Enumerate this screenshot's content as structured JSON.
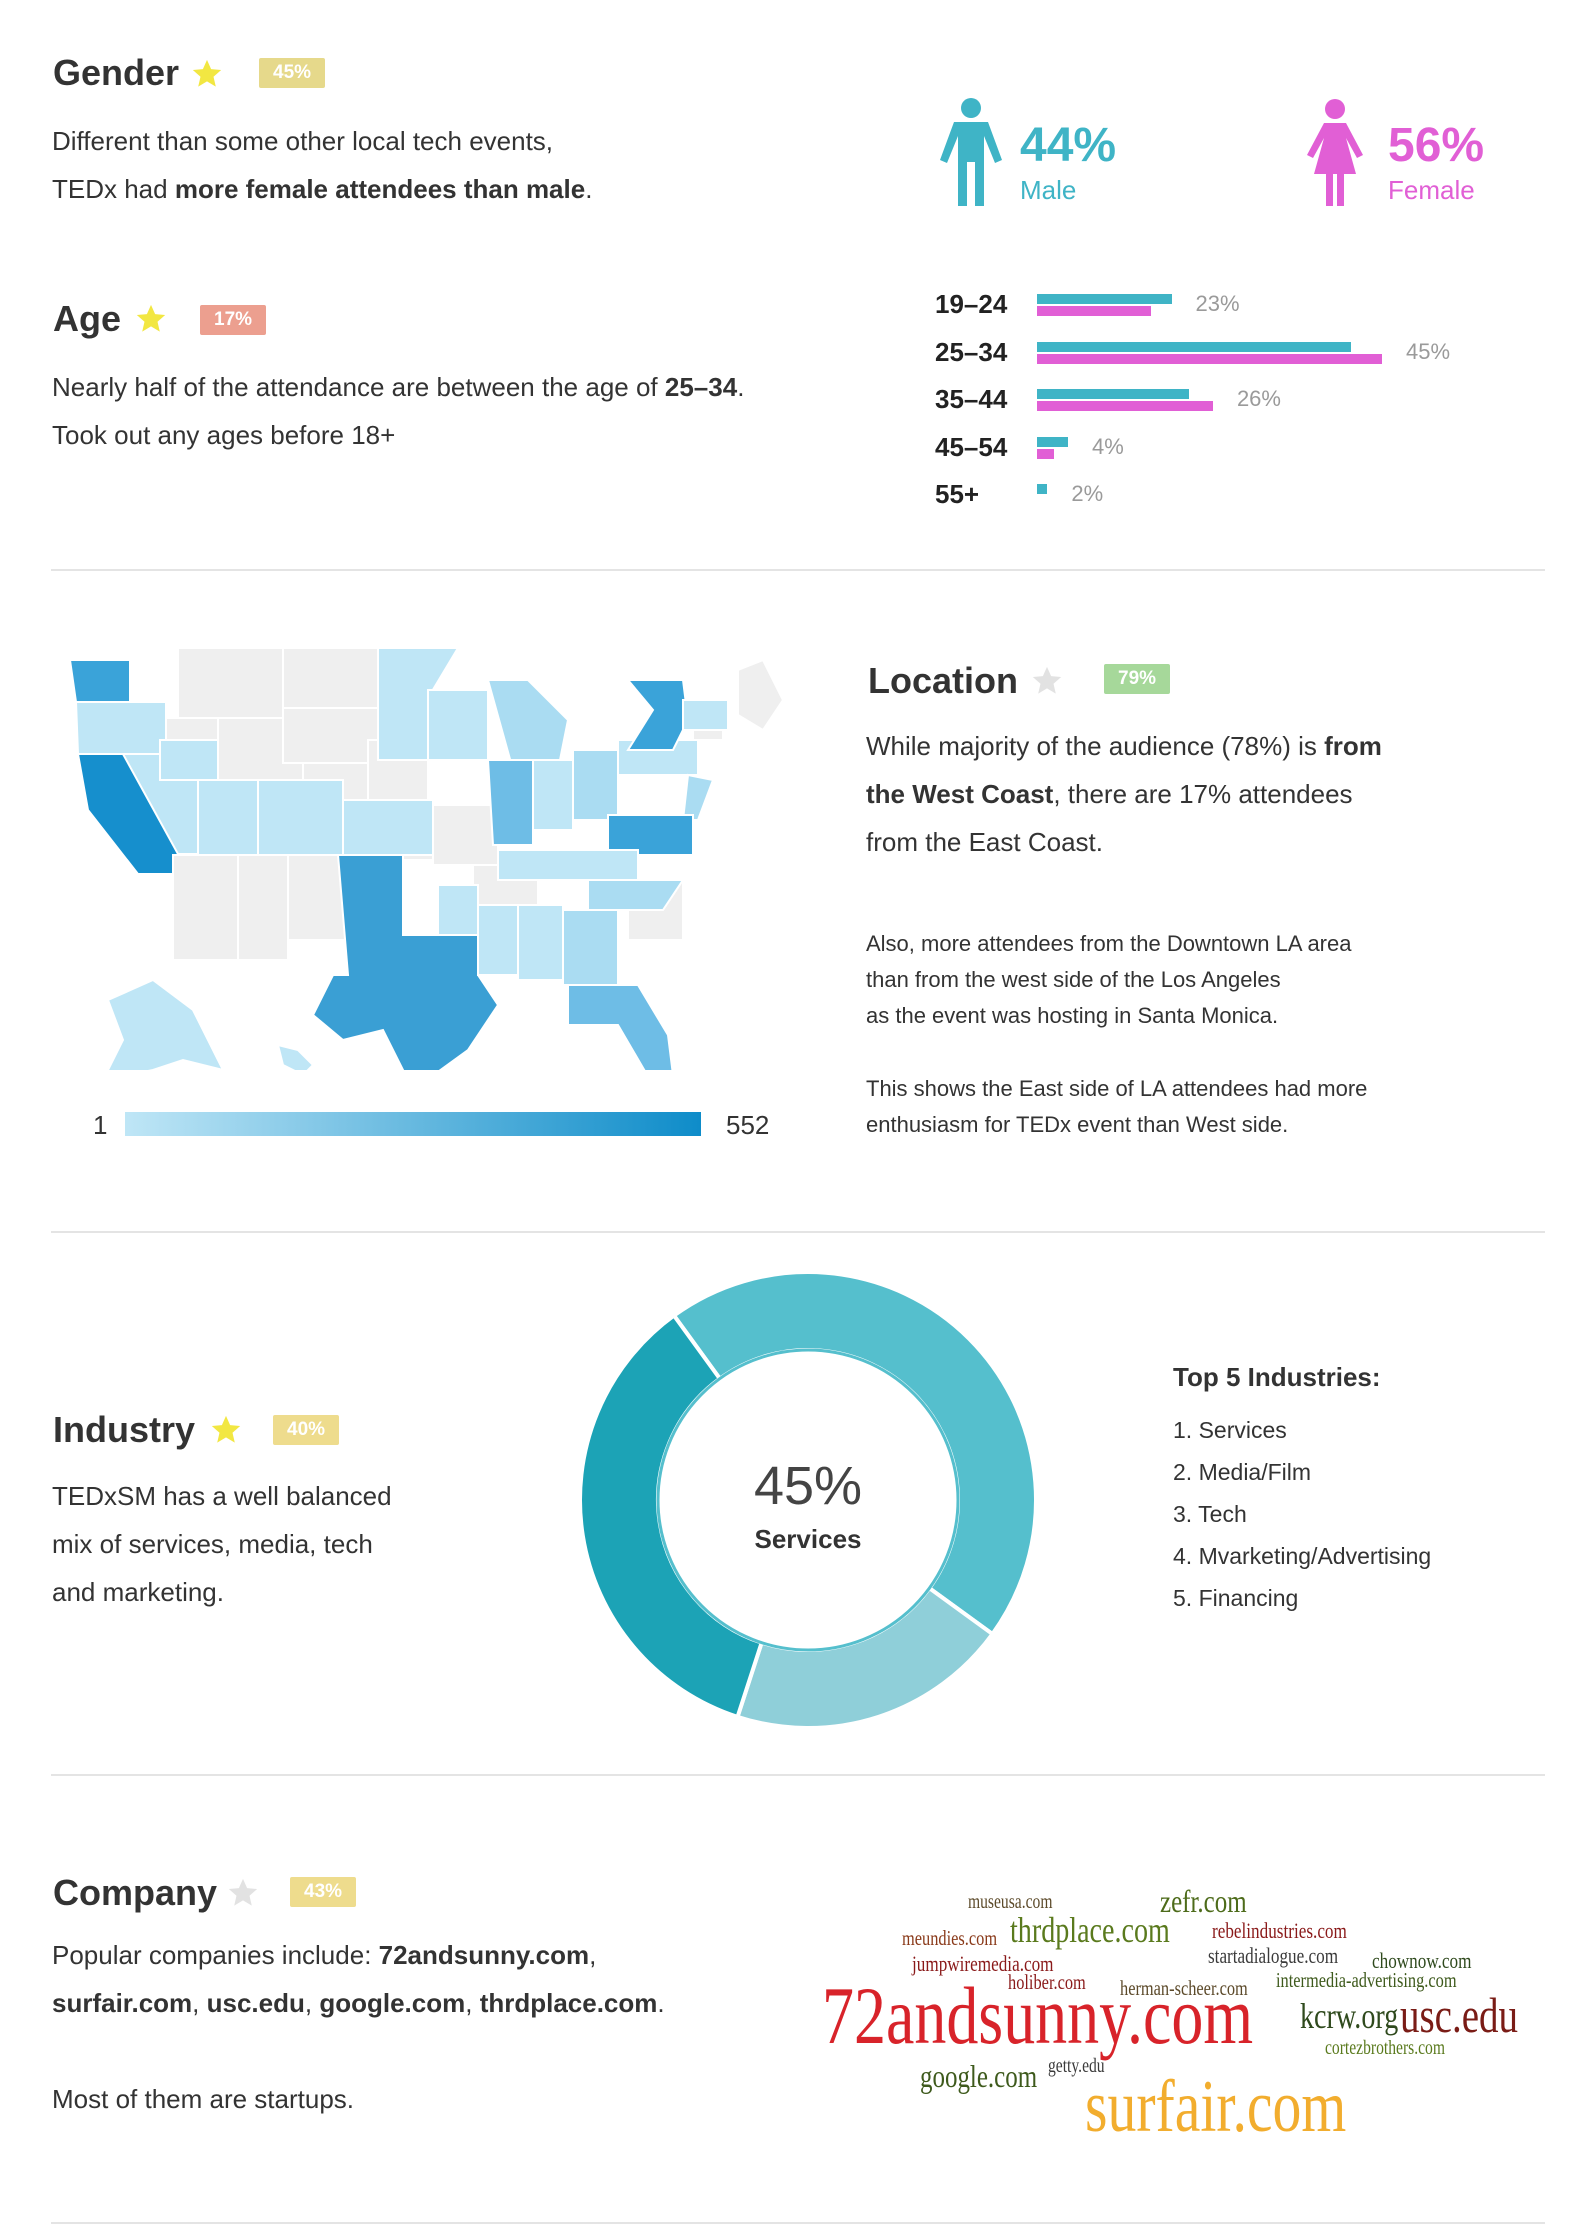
{
  "colors": {
    "male": "#3fb4c6",
    "female": "#e15fd5",
    "star": "#f2e742",
    "star_empty": "#d9d9d9",
    "badge_gold": "#e6d98b",
    "badge_red": "#ec9f8f",
    "badge_green": "#a6d89a",
    "badge_yellow": "#eedc8d",
    "map_low": "#bfe6f6",
    "map_high": "#0e8cc9"
  },
  "gender": {
    "title": "Gender",
    "badge": "45%",
    "text_1": "Different than some other local tech events,",
    "text_2a": "TEDx had ",
    "text_2b": "more female attendees than male",
    "text_2c": ".",
    "male_pct": "44%",
    "male_label": "Male",
    "female_pct": "56%",
    "female_label": "Female"
  },
  "age": {
    "title": "Age",
    "badge": "17%",
    "text_1a": "Nearly half of the attendance are between the age of ",
    "text_1b": "25–34",
    "text_1c": ".",
    "text_2": "Took out any ages before 18+",
    "groups": [
      {
        "label": "19–24",
        "pct": "23%",
        "male": 0.39,
        "female": 0.33
      },
      {
        "label": "25–34",
        "pct": "45%",
        "male": 0.91,
        "female": 1.0
      },
      {
        "label": "35–44",
        "pct": "26%",
        "male": 0.44,
        "female": 0.51
      },
      {
        "label": "45–54",
        "pct": "4%",
        "male": 0.09,
        "female": 0.05
      },
      {
        "label": "55+",
        "pct": "2%",
        "male": 0.03,
        "female": 0
      }
    ]
  },
  "location": {
    "title": "Location",
    "badge": "79%",
    "text_1a": "While majority of the audience (78%) is ",
    "text_1b": "from",
    "text_2a": "the West Coast",
    "text_2b": ", there are 17% attendees",
    "text_3": "from the East Coast.",
    "note_1": "Also, more attendees from the Downtown LA area",
    "note_2": "than from the west side of the Los Angeles",
    "note_3": "as the event was hosting in Santa Monica.",
    "note_4": "This shows the East side of LA attendees had more",
    "note_5": "enthusiasm for TEDx event than West side.",
    "scale_min": "1",
    "scale_max": "552"
  },
  "industry": {
    "title": "Industry",
    "badge": "40%",
    "text_1": "TEDxSM has a well balanced",
    "text_2": "mix of services, media, tech",
    "text_3": "and marketing.",
    "center_value": "45%",
    "center_label": "Services",
    "list_title": "Top 5 Industries:",
    "list": [
      "1. Services",
      "2. Media/Film",
      "3. Tech",
      "4. Mvarketing/Advertising",
      "5. Financing"
    ]
  },
  "company": {
    "title": "Company",
    "badge": "43%",
    "text_1a": "Popular companies include: ",
    "text_1b": "72andsunny.com",
    "text_1c": ",",
    "text_2a": "surfair.com",
    "text_2b": ", ",
    "text_2c": "usc.edu",
    "text_2d": ", ",
    "text_2e": "google.com",
    "text_2f": ", ",
    "text_2g": "thrdplace.com",
    "text_2h": ".",
    "text_3": "Most of them are startups.",
    "cloud": [
      "72andsunny.com",
      "surfair.com",
      "usc.edu",
      "kcrw.org",
      "thrdplace.com",
      "zefr.com",
      "google.com",
      "museusa.com",
      "meundies.com",
      "rebelindustries.com",
      "jumpwiremedia.com",
      "startadialogue.com",
      "chownow.com",
      "holiber.com",
      "herman-scheer.com",
      "intermedia-advertising.com",
      "cortezbrothers.com",
      "getty.edu"
    ]
  },
  "chart_data": [
    {
      "type": "bar",
      "categories": [
        "19–24",
        "25–34",
        "35–44",
        "45–54",
        "55+"
      ],
      "values": [
        23,
        45,
        26,
        4,
        2
      ],
      "data_labels": [
        "23%",
        "45%",
        "26%",
        "4%",
        "2%"
      ],
      "series": [
        {
          "name": "Male",
          "values": [
            0.39,
            0.91,
            0.44,
            0.09,
            0.03
          ]
        },
        {
          "name": "Female",
          "values": [
            0.33,
            1.0,
            0.51,
            0.05,
            0
          ]
        }
      ]
    },
    {
      "type": "pie",
      "categories": [
        "Services",
        "Media/Film",
        "Tech"
      ],
      "values": [
        45,
        20,
        35
      ],
      "center_label": "45% Services"
    }
  ]
}
